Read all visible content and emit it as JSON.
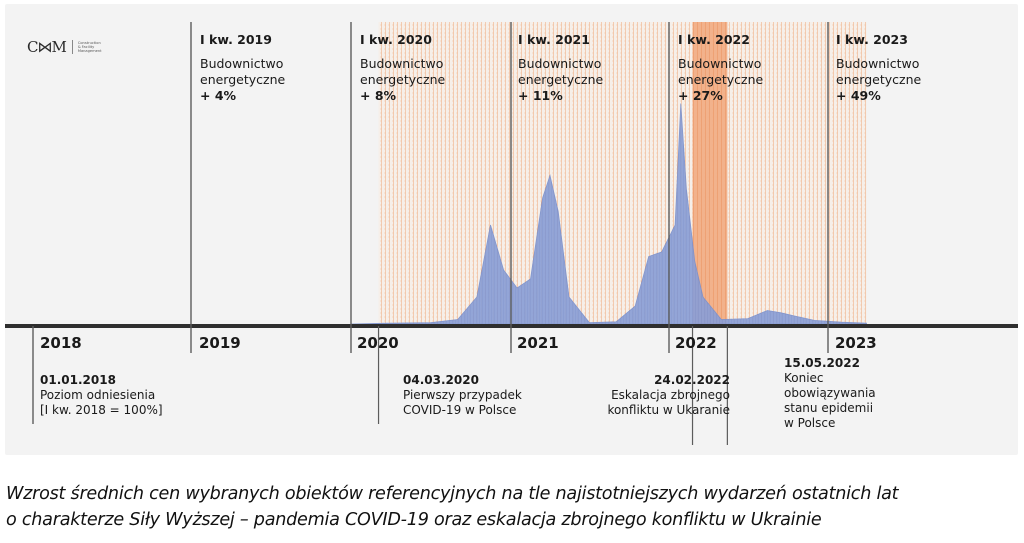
{
  "logo": {
    "mark": "C⋈M",
    "text": "Construction\n& Facility\nManagement"
  },
  "quarters": [
    {
      "label": "I kw. 2019",
      "desc": "Budownictwo\nenergetyczne",
      "value": "+ 4%"
    },
    {
      "label": "I kw. 2020",
      "desc": "Budownictwo\nenergetyczne",
      "value": "+ 8%"
    },
    {
      "label": "I kw. 2021",
      "desc": "Budownictwo\nenergetyczne",
      "value": "+ 11%"
    },
    {
      "label": "I kw. 2022",
      "desc": "Budownictwo\nenergetyczne",
      "value": "+ 27%"
    },
    {
      "label": "I kw. 2023",
      "desc": "Budownictwo\nenergetyczne",
      "value": "+ 49%"
    }
  ],
  "years": [
    "2018",
    "2019",
    "2020",
    "2021",
    "2022",
    "2023"
  ],
  "events": [
    {
      "date": "01.01.2018",
      "text": "Poziom odniesienia\n[I kw. 2018 = 100%]"
    },
    {
      "date": "04.03.2020",
      "text": "Pierwszy przypadek\nCOVID-19 w Polsce"
    },
    {
      "date": "24.02.2022",
      "text": "Eskalacja zbrojnego\nkonfliktu w Ukaranie"
    },
    {
      "date": "15.05.2022",
      "text": "Koniec\nobowiązywania\nstanu epidemii\nw Polsce"
    }
  ],
  "caption": {
    "line1": "Wzrost średnich cen wybranych obiektów referencyjnych na tle najistotniejszych wydarzeń ostatnich lat",
    "line2": "o charakterze Siły Wyższej – pandemia COVID-19 oraz eskalacja zbrojnego konfliktu w Ukrainie"
  },
  "colors": {
    "covid_fill": "#8a9fd4",
    "hatch_line": "#f0a070",
    "war_fill": "#f3b48c",
    "axis": "#333333",
    "divider": "#6a6a6a"
  },
  "chart_data": {
    "type": "area",
    "series": [
      {
        "values": [
          [
            "2020-01-01",
            0
          ],
          [
            "2020-04-01",
            0.2
          ],
          [
            "2020-07-01",
            0.3
          ],
          [
            "2020-09-01",
            1
          ],
          [
            "2020-10-15",
            6
          ],
          [
            "2020-11-15",
            22
          ],
          [
            "2020-12-15",
            12
          ],
          [
            "2021-01-15",
            8
          ],
          [
            "2021-02-15",
            10
          ],
          [
            "2021-03-15",
            28
          ],
          [
            "2021-04-01",
            33
          ],
          [
            "2021-04-20",
            25
          ],
          [
            "2021-05-15",
            6
          ],
          [
            "2021-07-01",
            0.3
          ],
          [
            "2021-09-01",
            0.5
          ],
          [
            "2021-10-15",
            4
          ],
          [
            "2021-11-15",
            15
          ],
          [
            "2021-12-15",
            16
          ],
          [
            "2022-01-15",
            22
          ],
          [
            "2022-01-28",
            49
          ],
          [
            "2022-02-10",
            30
          ],
          [
            "2022-03-01",
            14
          ],
          [
            "2022-03-20",
            6
          ],
          [
            "2022-05-01",
            1
          ],
          [
            "2022-07-01",
            1.2
          ],
          [
            "2022-08-15",
            3
          ],
          [
            "2022-09-15",
            2.5
          ],
          [
            "2022-10-15",
            1.8
          ],
          [
            "2022-12-01",
            0.8
          ],
          [
            "2023-02-01",
            0.4
          ],
          [
            "2023-03-31",
            0.2
          ]
        ]
      }
    ],
    "shaded_periods": [
      {
        "from": "2020-03-04",
        "to": "2023-03-31",
        "style": "hatched"
      },
      {
        "from": "2022-02-24",
        "to": "2022-05-15",
        "style": "filled"
      }
    ],
    "xlim": [
      "2018-01-01",
      "2023-03-31"
    ]
  }
}
